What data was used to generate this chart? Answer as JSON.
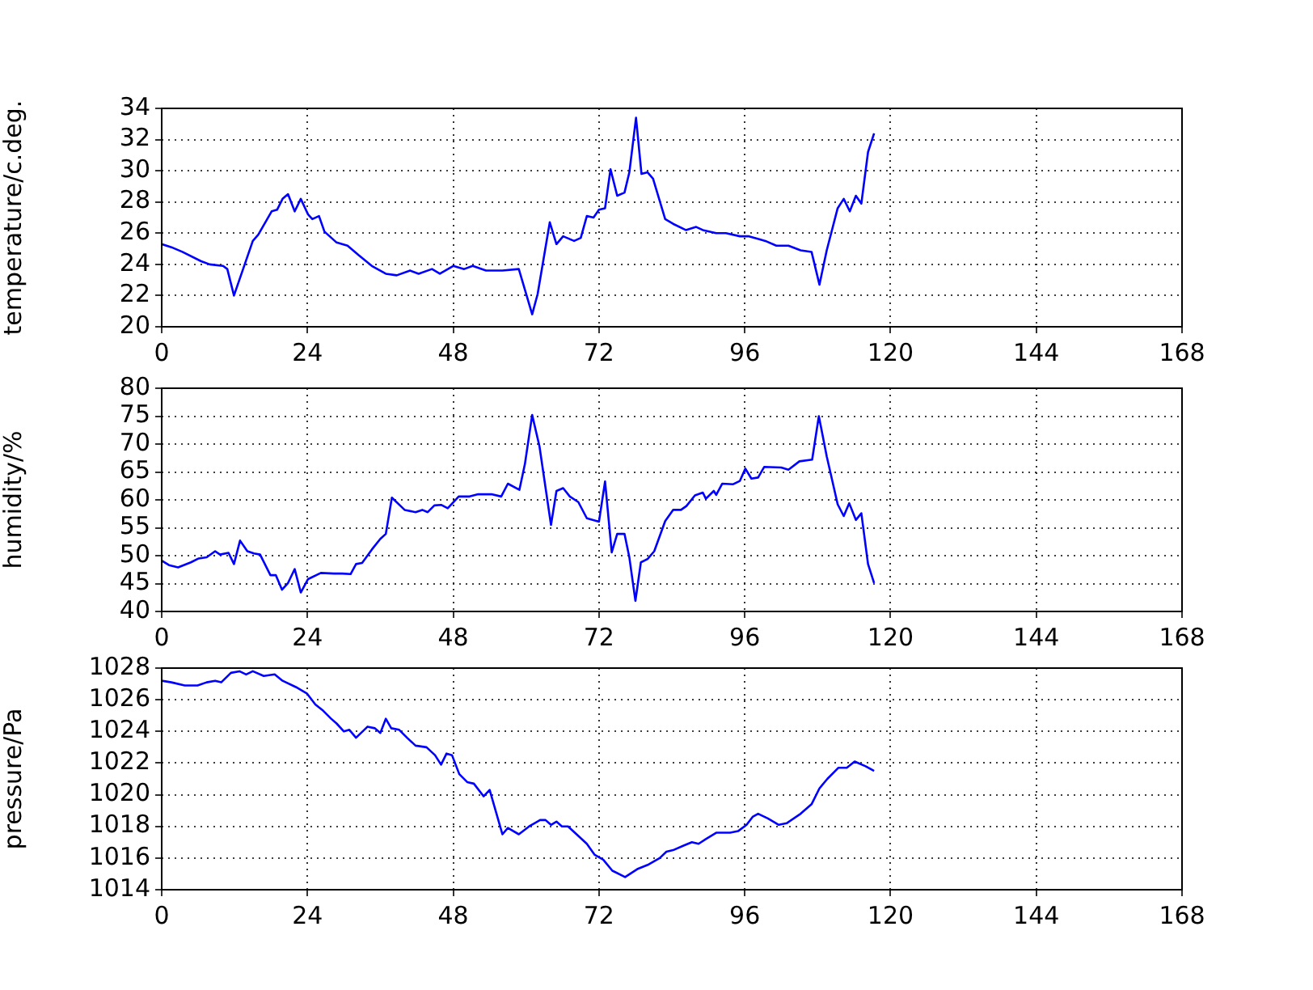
{
  "chart_data": [
    {
      "type": "line",
      "ylabel": "temperature/c.deg.",
      "color": "#0000ff",
      "marker": "none",
      "grid": true,
      "xlim": [
        0,
        168
      ],
      "xticks": [
        0,
        24,
        48,
        72,
        96,
        120,
        144,
        168
      ],
      "ylim": [
        20,
        34
      ],
      "yticks": [
        20,
        22,
        24,
        26,
        28,
        30,
        32,
        34
      ],
      "x": [
        0,
        1.6,
        3.4,
        6.5,
        7.9,
        10.1,
        10.8,
        11.9,
        15,
        15.9,
        18.1,
        19,
        19.9,
        20.8,
        21.9,
        22.9,
        24.1,
        24.8,
        25.9,
        26.8,
        28.8,
        30.6,
        32.4,
        34.6,
        36.9,
        38.7,
        40.9,
        42.3,
        44.5,
        45.8,
        48,
        49.8,
        51.2,
        53.4,
        56.1,
        58.8,
        61,
        61.9,
        63.9,
        65,
        66.1,
        67.9,
        69,
        70,
        71.1,
        72,
        73,
        73.9,
        75,
        76.2,
        77,
        78.1,
        79,
        80,
        80.9,
        82.9,
        84.2,
        86.3,
        88,
        89.1,
        91.3,
        92.9,
        95.2,
        96.7,
        98.5,
        99.4,
        101.2,
        103.2,
        105.2,
        107,
        108.3,
        109.5,
        111.3,
        112.3,
        113.3,
        114.3,
        115.2,
        116.3,
        117.3
      ],
      "values": [
        25.3,
        25.1,
        24.8,
        24.2,
        24.0,
        23.9,
        23.7,
        22.0,
        25.5,
        25.9,
        27.4,
        27.5,
        28.2,
        28.5,
        27.4,
        28.2,
        27.2,
        26.9,
        27.1,
        26.1,
        25.4,
        25.2,
        24.6,
        23.9,
        23.4,
        23.3,
        23.6,
        23.4,
        23.7,
        23.4,
        23.9,
        23.7,
        23.9,
        23.6,
        23.6,
        23.7,
        20.8,
        22.1,
        26.7,
        25.3,
        25.8,
        25.5,
        25.7,
        27.1,
        27.0,
        27.5,
        27.6,
        30.1,
        28.4,
        28.6,
        29.9,
        33.4,
        29.8,
        29.9,
        29.5,
        26.9,
        26.6,
        26.2,
        26.4,
        26.2,
        26.0,
        26.0,
        25.8,
        25.8,
        25.6,
        25.5,
        25.2,
        25.2,
        24.9,
        24.8,
        22.7,
        24.9,
        27.6,
        28.2,
        27.4,
        28.4,
        27.9,
        31.2,
        32.4
      ]
    },
    {
      "type": "line",
      "ylabel": "humidity/%",
      "color": "#0000ff",
      "marker": "none",
      "grid": true,
      "xlim": [
        0,
        168
      ],
      "xticks": [
        0,
        24,
        48,
        72,
        96,
        120,
        144,
        168
      ],
      "ylim": [
        40,
        80
      ],
      "yticks": [
        40,
        45,
        50,
        55,
        60,
        65,
        70,
        75,
        80
      ],
      "x": [
        0,
        1.2,
        2.7,
        4.8,
        6.1,
        7.4,
        8.8,
        9.6,
        11,
        11.9,
        12.9,
        14.1,
        15.2,
        16.2,
        17.9,
        18.8,
        19.8,
        20.8,
        21.9,
        22.9,
        24.1,
        26.2,
        28.4,
        29.7,
        31.1,
        32,
        33,
        34.6,
        36,
        36.9,
        37.9,
        40,
        41.8,
        42.9,
        43.8,
        44.9,
        46,
        47.1,
        48.9,
        50.7,
        52.1,
        54.3,
        55.9,
        57,
        58.9,
        59.8,
        61,
        62.2,
        64.1,
        65,
        66.1,
        67.2,
        68.6,
        70,
        72,
        73,
        74.1,
        75,
        76.2,
        77,
        78,
        78.9,
        80,
        81.1,
        82.9,
        84.2,
        85.5,
        86.4,
        87.8,
        89.1,
        89.6,
        90.9,
        91.3,
        92.3,
        94.1,
        95.2,
        96.1,
        97.1,
        98.2,
        99.2,
        102,
        103.2,
        105,
        107.1,
        108.2,
        109.5,
        111.3,
        112.3,
        113.2,
        114.3,
        115.2,
        116.3,
        117.3
      ],
      "values": [
        49.1,
        48.3,
        47.9,
        48.8,
        49.5,
        49.7,
        50.8,
        50.2,
        50.5,
        48.5,
        52.7,
        50.8,
        50.4,
        50.2,
        46.5,
        46.5,
        43.9,
        45.1,
        47.6,
        43.4,
        45.8,
        46.9,
        46.8,
        46.8,
        46.7,
        48.5,
        48.7,
        51.1,
        53.0,
        53.9,
        60.4,
        58.2,
        57.8,
        58.2,
        57.8,
        59.0,
        59.1,
        58.5,
        60.6,
        60.6,
        61.0,
        61.0,
        60.6,
        62.9,
        61.8,
        66.4,
        75.2,
        69.6,
        55.5,
        61.6,
        62.1,
        60.6,
        59.6,
        56.7,
        56.1,
        63.3,
        50.6,
        53.9,
        53.9,
        49.7,
        41.9,
        48.8,
        49.4,
        50.8,
        56.2,
        58.2,
        58.2,
        58.9,
        60.8,
        61.3,
        60.2,
        61.6,
        60.9,
        62.9,
        62.8,
        63.4,
        65.6,
        63.8,
        64.0,
        65.9,
        65.8,
        65.4,
        66.9,
        67.2,
        75.0,
        67.8,
        59.2,
        57.1,
        59.4,
        56.4,
        57.6,
        48.5,
        45.1
      ]
    },
    {
      "type": "line",
      "ylabel": "pressure/Pa",
      "color": "#0000ff",
      "marker": "none",
      "grid": true,
      "xlim": [
        0,
        168
      ],
      "xticks": [
        0,
        24,
        48,
        72,
        96,
        120,
        144,
        168
      ],
      "ylim": [
        1014,
        1028
      ],
      "yticks": [
        1014,
        1016,
        1018,
        1020,
        1022,
        1024,
        1026,
        1028
      ],
      "x": [
        0,
        1.6,
        3.8,
        5.9,
        7.4,
        8.8,
        9.8,
        11.4,
        12.8,
        13.9,
        15,
        16.8,
        18.6,
        19.9,
        22.1,
        23.9,
        25.3,
        26.6,
        27.9,
        28.8,
        30,
        30.9,
        32,
        33.9,
        35.1,
        36,
        36.9,
        37.8,
        39.1,
        40.4,
        41.8,
        43.6,
        45,
        46,
        46.9,
        47.8,
        49,
        50.3,
        51.4,
        53,
        54,
        56.1,
        57,
        58.8,
        60.5,
        62.3,
        63.2,
        64.1,
        65,
        65.9,
        66.9,
        68.6,
        70,
        71.3,
        72.7,
        74.2,
        76.3,
        78.3,
        80.2,
        82,
        83.1,
        84.2,
        86,
        87.3,
        88.4,
        89.6,
        91.3,
        93.6,
        94.9,
        96.3,
        97.3,
        98.2,
        99.8,
        101.6,
        102.9,
        105.2,
        107,
        108.3,
        109.6,
        111.4,
        112.8,
        114.1,
        115.9,
        117.3
      ],
      "values": [
        1027.2,
        1027.1,
        1026.9,
        1026.9,
        1027.1,
        1027.2,
        1027.1,
        1027.7,
        1027.8,
        1027.6,
        1027.8,
        1027.5,
        1027.6,
        1027.2,
        1026.8,
        1026.4,
        1025.7,
        1025.3,
        1024.8,
        1024.5,
        1024.0,
        1024.1,
        1023.6,
        1024.3,
        1024.2,
        1023.9,
        1024.8,
        1024.2,
        1024.1,
        1023.6,
        1023.1,
        1023.0,
        1022.5,
        1021.9,
        1022.6,
        1022.5,
        1021.3,
        1020.8,
        1020.7,
        1019.9,
        1020.3,
        1017.5,
        1017.9,
        1017.5,
        1018.0,
        1018.4,
        1018.4,
        1018.1,
        1018.3,
        1018.0,
        1018.0,
        1017.4,
        1016.9,
        1016.2,
        1015.9,
        1015.2,
        1014.8,
        1015.3,
        1015.6,
        1016.0,
        1016.4,
        1016.5,
        1016.8,
        1017.0,
        1016.9,
        1017.2,
        1017.6,
        1017.6,
        1017.7,
        1018.1,
        1018.6,
        1018.8,
        1018.5,
        1018.1,
        1018.2,
        1018.8,
        1019.4,
        1020.4,
        1021.0,
        1021.7,
        1021.7,
        1022.1,
        1021.8,
        1021.5
      ]
    }
  ]
}
